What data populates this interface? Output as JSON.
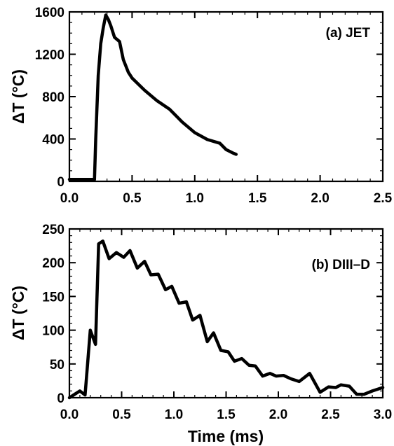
{
  "chart_data": [
    {
      "type": "line",
      "annotation": "(a) JET",
      "xlabel": "",
      "ylabel": "ΔT (°C)",
      "xlim": [
        0.0,
        2.5
      ],
      "ylim": [
        0,
        1600
      ],
      "xticks": [
        {
          "value": 0.0,
          "label": "0.0"
        },
        {
          "value": 0.5,
          "label": "0.5"
        },
        {
          "value": 1.0,
          "label": "1.0"
        },
        {
          "value": 1.5,
          "label": "1.5"
        },
        {
          "value": 2.0,
          "label": "2.0"
        },
        {
          "value": 2.5,
          "label": "2.5"
        }
      ],
      "yticks": [
        {
          "value": 0,
          "label": "0"
        },
        {
          "value": 400,
          "label": "400"
        },
        {
          "value": 800,
          "label": "800"
        },
        {
          "value": 1200,
          "label": "1200"
        },
        {
          "value": 1600,
          "label": "1600"
        }
      ],
      "series": [
        {
          "x": [
            0.0,
            0.2,
            0.21,
            0.23,
            0.25,
            0.27,
            0.29,
            0.31,
            0.33,
            0.36,
            0.4,
            0.43,
            0.47,
            0.5,
            0.6,
            0.7,
            0.8,
            0.9,
            1.0,
            1.1,
            1.2,
            1.25,
            1.3,
            1.33
          ],
          "y": [
            18,
            18,
            400,
            1000,
            1300,
            1450,
            1570,
            1530,
            1470,
            1360,
            1320,
            1150,
            1030,
            975,
            860,
            760,
            680,
            560,
            460,
            395,
            360,
            300,
            270,
            255
          ]
        }
      ]
    },
    {
      "type": "line",
      "annotation": "(b) DIII–D",
      "xlabel": "Time (ms)",
      "ylabel": "ΔT (°C)",
      "xlim": [
        0.0,
        3.0
      ],
      "ylim": [
        0,
        250
      ],
      "xticks": [
        {
          "value": 0.0,
          "label": "0.0"
        },
        {
          "value": 0.5,
          "label": "0.5"
        },
        {
          "value": 1.0,
          "label": "1.0"
        },
        {
          "value": 1.5,
          "label": "1.5"
        },
        {
          "value": 2.0,
          "label": "2.0"
        },
        {
          "value": 2.5,
          "label": "2.5"
        },
        {
          "value": 3.0,
          "label": "3.0"
        }
      ],
      "yticks": [
        {
          "value": 0,
          "label": "0"
        },
        {
          "value": 50,
          "label": "50"
        },
        {
          "value": 100,
          "label": "100"
        },
        {
          "value": 150,
          "label": "150"
        },
        {
          "value": 200,
          "label": "200"
        },
        {
          "value": 250,
          "label": "250"
        }
      ],
      "series": [
        {
          "x": [
            0.0,
            0.05,
            0.1,
            0.15,
            0.2,
            0.25,
            0.28,
            0.32,
            0.38,
            0.45,
            0.52,
            0.58,
            0.65,
            0.72,
            0.78,
            0.85,
            0.92,
            0.98,
            1.05,
            1.12,
            1.18,
            1.25,
            1.32,
            1.38,
            1.45,
            1.52,
            1.58,
            1.65,
            1.72,
            1.78,
            1.85,
            1.92,
            1.98,
            2.05,
            2.12,
            2.2,
            2.3,
            2.4,
            2.48,
            2.55,
            2.6,
            2.68,
            2.75,
            2.82,
            2.9,
            3.0
          ],
          "y": [
            0,
            5,
            10,
            4,
            100,
            79,
            228,
            232,
            206,
            215,
            208,
            218,
            192,
            202,
            182,
            183,
            160,
            165,
            140,
            142,
            115,
            122,
            83,
            96,
            70,
            68,
            54,
            58,
            48,
            47,
            32,
            36,
            32,
            33,
            28,
            24,
            36,
            8,
            16,
            15,
            19,
            17,
            5,
            5,
            10,
            15
          ]
        }
      ]
    }
  ]
}
